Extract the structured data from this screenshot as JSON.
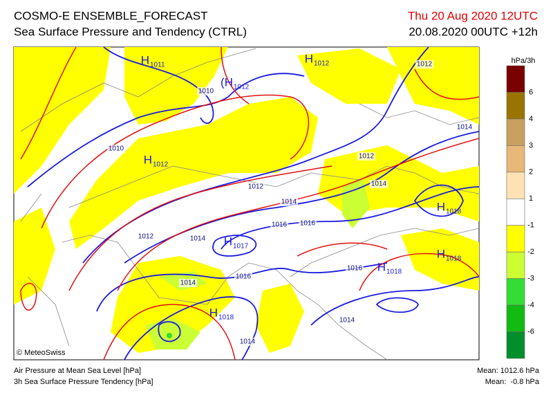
{
  "header": {
    "title": "COSMO-E ENSEMBLE_FORECAST",
    "subtitle": "Sea Surface Pressure and Tendency (CTRL)",
    "valid_time": "Thu 20 Aug 2020 12UTC",
    "run": "20.08.2020 00UTC +12h"
  },
  "map": {
    "copyright": "© MeteoSwiss",
    "isobar_labels": [
      "1010",
      "1010",
      "1012",
      "1014",
      "1016",
      "1016",
      "1012",
      "1014",
      "1014",
      "1016",
      "1016",
      "1014",
      "1014",
      "1012",
      "1014",
      "1012",
      "1014"
    ],
    "pressure_centers": [
      {
        "letter": "H",
        "value": "1011"
      },
      {
        "letter": "H",
        "value": "1012"
      },
      {
        "letter": "(H",
        "value": "1012"
      },
      {
        "letter": "H",
        "value": "1012"
      },
      {
        "letter": "H",
        "value": "1017"
      },
      {
        "letter": "H",
        "value": "1018"
      },
      {
        "letter": "H",
        "value": "1018"
      },
      {
        "letter": "H",
        "value": "1018"
      },
      {
        "letter": "H",
        "value": "1018"
      }
    ]
  },
  "colorbar": {
    "unit": "hPa/3h",
    "labels": [
      "6",
      "4",
      "3",
      "2",
      "1",
      "-1",
      "-2",
      "-3",
      "-4",
      "-6"
    ],
    "colors": [
      "#7a0000",
      "#9a7400",
      "#c8a060",
      "#e8b878",
      "#ffe2b4",
      "#ffffff",
      "#ffff00",
      "#ccff33",
      "#33dd33",
      "#11bb11",
      "#008f2a"
    ]
  },
  "footer": {
    "left": [
      "Air Pressure at Mean Sea Level [hPa]",
      "3h Sea Surface Pressure Tendency [hPa]"
    ],
    "right": [
      "Mean: 1012.6 hPa",
      "Mean:  -0.8 hPa"
    ]
  }
}
